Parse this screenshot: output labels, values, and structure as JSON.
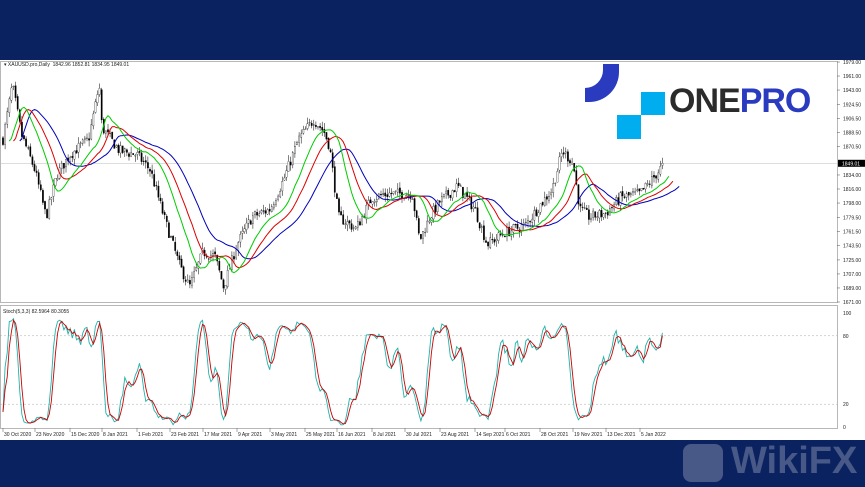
{
  "chart_header": {
    "symbol": "XAUUSD.pro,Daily",
    "ohlc": "1842.96 1852.81 1834.95 1849.01"
  },
  "stoch_header": "Stoch(5,3,3) 82.5964 80.3055",
  "logo": {
    "one": "ONE",
    "pro": "PRO",
    "colors": {
      "dark": "#2b2b2b",
      "blue": "#2a3bbf",
      "cyan": "#00aeef"
    }
  },
  "watermark": "WikiFX",
  "colors": {
    "background": "#0b2260",
    "ma_fast": "#00cc00",
    "ma_mid": "#dd0000",
    "ma_slow": "#0000bb",
    "stoch_main": "#20b2aa",
    "stoch_signal": "#cc0000"
  },
  "chart_data": [
    {
      "type": "candlestick",
      "title": "XAUUSD.pro,Daily",
      "ylim": [
        1671,
        1979
      ],
      "y_ticks": [
        "1979.00",
        "1961.00",
        "1943.00",
        "1924.50",
        "1906.50",
        "1888.50",
        "1870.50",
        "1834.00",
        "1816.00",
        "1798.00",
        "1779.50",
        "1761.50",
        "1743.50",
        "1725.00",
        "1707.00",
        "1689.00",
        "1671.00"
      ],
      "current_price": "1849.01",
      "x_ticks": [
        "30 Oct 2020",
        "23 Nov 2020",
        "15 Dec 2020",
        "8 Jan 2021",
        "1 Feb 2021",
        "23 Feb 2021",
        "17 Mar 2021",
        "9 Apr 2021",
        "3 May 2021",
        "25 May 2021",
        "16 Jun 2021",
        "8 Jul 2021",
        "30 Jul 2021",
        "23 Aug 2021",
        "14 Sep 2021",
        "6 Oct 2021",
        "28 Oct 2021",
        "19 Nov 2021",
        "13 Dec 2021",
        "5 Jan 2022"
      ],
      "approx_close_path": [
        [
          "2020-10-30",
          1880
        ],
        [
          "2020-11-06",
          1950
        ],
        [
          "2020-11-13",
          1885
        ],
        [
          "2020-11-23",
          1840
        ],
        [
          "2020-11-30",
          1780
        ],
        [
          "2020-12-07",
          1835
        ],
        [
          "2020-12-15",
          1860
        ],
        [
          "2020-12-29",
          1880
        ],
        [
          "2021-01-06",
          1950
        ],
        [
          "2021-01-08",
          1895
        ],
        [
          "2021-01-20",
          1865
        ],
        [
          "2021-02-01",
          1860
        ],
        [
          "2021-02-10",
          1840
        ],
        [
          "2021-02-19",
          1780
        ],
        [
          "2021-03-01",
          1720
        ],
        [
          "2021-03-08",
          1690
        ],
        [
          "2021-03-17",
          1735
        ],
        [
          "2021-03-25",
          1730
        ],
        [
          "2021-03-31",
          1690
        ],
        [
          "2021-04-09",
          1745
        ],
        [
          "2021-04-20",
          1780
        ],
        [
          "2021-05-03",
          1790
        ],
        [
          "2021-05-12",
          1830
        ],
        [
          "2021-05-21",
          1880
        ],
        [
          "2021-05-31",
          1905
        ],
        [
          "2021-06-07",
          1890
        ],
        [
          "2021-06-11",
          1870
        ],
        [
          "2021-06-17",
          1780
        ],
        [
          "2021-06-28",
          1765
        ],
        [
          "2021-07-08",
          1805
        ],
        [
          "2021-07-19",
          1810
        ],
        [
          "2021-07-27",
          1810
        ],
        [
          "2021-08-04",
          1810
        ],
        [
          "2021-08-09",
          1750
        ],
        [
          "2021-08-16",
          1780
        ],
        [
          "2021-08-23",
          1800
        ],
        [
          "2021-09-03",
          1820
        ],
        [
          "2021-09-14",
          1790
        ],
        [
          "2021-09-23",
          1745
        ],
        [
          "2021-10-06",
          1760
        ],
        [
          "2021-10-19",
          1770
        ],
        [
          "2021-10-28",
          1795
        ],
        [
          "2021-11-05",
          1815
        ],
        [
          "2021-11-12",
          1865
        ],
        [
          "2021-11-19",
          1850
        ],
        [
          "2021-11-24",
          1790
        ],
        [
          "2021-12-01",
          1780
        ],
        [
          "2021-12-13",
          1785
        ],
        [
          "2021-12-23",
          1805
        ],
        [
          "2022-01-05",
          1810
        ],
        [
          "2022-01-12",
          1825
        ],
        [
          "2022-01-18",
          1840
        ],
        [
          "2022-01-21",
          1849
        ]
      ]
    },
    {
      "type": "line",
      "title": "Stoch(5,3,3) 82.5964 80.3055",
      "ylim": [
        0,
        100
      ],
      "y_ticks": [
        "100",
        "80",
        "20",
        "0"
      ],
      "levels": [
        80,
        20
      ],
      "last_values": {
        "main": 82.5964,
        "signal": 80.3055
      }
    }
  ]
}
